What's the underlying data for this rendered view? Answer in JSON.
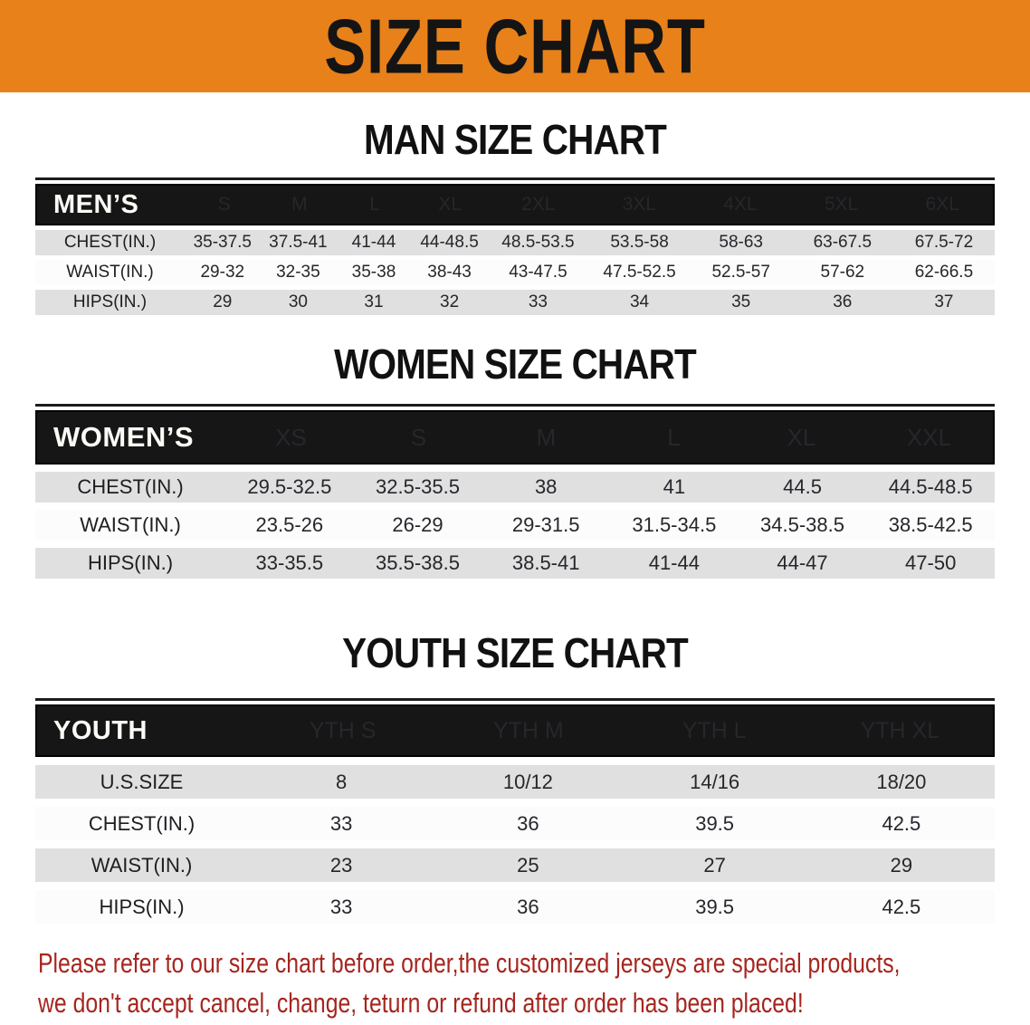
{
  "banner": {
    "title": "SIZE CHART"
  },
  "sections": [
    {
      "heading": "MAN SIZE CHART",
      "table": {
        "corner_label": "MEN’S",
        "columns": [
          "S",
          "M",
          "L",
          "XL",
          "2XL",
          "3XL",
          "4XL",
          "5XL",
          "6XL"
        ],
        "rows": [
          {
            "label": "CHEST(IN.)",
            "values": [
              "35-37.5",
              "37.5-41",
              "41-44",
              "44-48.5",
              "48.5-53.5",
              "53.5-58",
              "58-63",
              "63-67.5",
              "67.5-72"
            ]
          },
          {
            "label": "WAIST(IN.)",
            "values": [
              "29-32",
              "32-35",
              "35-38",
              "38-43",
              "43-47.5",
              "47.5-52.5",
              "52.5-57",
              "57-62",
              "62-66.5"
            ]
          },
          {
            "label": "HIPS(IN.)",
            "values": [
              "29",
              "30",
              "31",
              "32",
              "33",
              "34",
              "35",
              "36",
              "37"
            ]
          }
        ]
      }
    },
    {
      "heading": "WOMEN SIZE CHART",
      "table": {
        "corner_label": "WOMEN’S",
        "columns": [
          "XS",
          "S",
          "M",
          "L",
          "XL",
          "XXL"
        ],
        "rows": [
          {
            "label": "CHEST(IN.)",
            "values": [
              "29.5-32.5",
              "32.5-35.5",
              "38",
              "41",
              "44.5",
              "44.5-48.5"
            ]
          },
          {
            "label": "WAIST(IN.)",
            "values": [
              "23.5-26",
              "26-29",
              "29-31.5",
              "31.5-34.5",
              "34.5-38.5",
              "38.5-42.5"
            ]
          },
          {
            "label": "HIPS(IN.)",
            "values": [
              "33-35.5",
              "35.5-38.5",
              "38.5-41",
              "41-44",
              "44-47",
              "47-50"
            ]
          }
        ]
      }
    },
    {
      "heading": "YOUTH SIZE CHART",
      "table": {
        "corner_label": "YOUTH",
        "columns": [
          "YTH S",
          "YTH M",
          "YTH L",
          "YTH XL"
        ],
        "rows": [
          {
            "label": "U.S.SIZE",
            "values": [
              "8",
              "10/12",
              "14/16",
              "18/20"
            ]
          },
          {
            "label": "CHEST(IN.)",
            "values": [
              "33",
              "36",
              "39.5",
              "42.5"
            ]
          },
          {
            "label": "WAIST(IN.)",
            "values": [
              "23",
              "25",
              "27",
              "29"
            ]
          },
          {
            "label": "HIPS(IN.)",
            "values": [
              "33",
              "36",
              "39.5",
              "42.5"
            ]
          }
        ]
      }
    }
  ],
  "disclaimer": {
    "lines": [
      "Please refer to our size chart before order,the customized jerseys are special products,",
      "we don't accept cancel, change, teturn or refund after order has been placed!"
    ]
  },
  "colors": {
    "banner_bg": "#E8811A",
    "header_bar": "#161616",
    "row_gray": "#E0E0E0",
    "row_white": "#FCFCFC",
    "disclaimer_red": "#A5261F"
  }
}
